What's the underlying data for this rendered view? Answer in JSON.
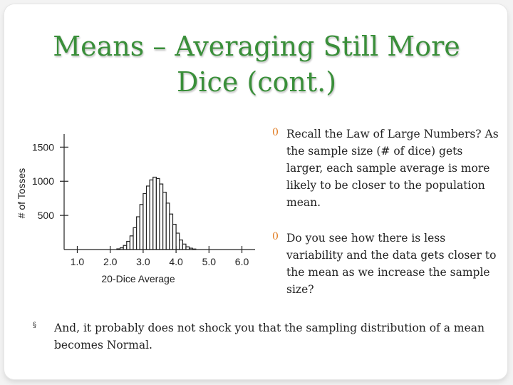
{
  "slide": {
    "title_line1": "Means – Averaging Still More",
    "title_line2": "Dice (cont.)",
    "bullet_marker": "0",
    "bullets": [
      "Recall the Law of Large Numbers? As the sample size (# of dice) gets larger, each sample average is more likely to be closer to the population mean.",
      "Do you see how there is less variability and the data gets closer to the mean as we increase the sample size?"
    ],
    "footnote_marker": "§",
    "footnote": "And, it probably does not shock you that the sampling distribution of a mean becomes Normal."
  },
  "chart_data": {
    "type": "bar",
    "title": "",
    "xlabel": "20-Dice Average",
    "ylabel": "# of Tosses",
    "x_ticks": [
      1.0,
      2.0,
      3.0,
      4.0,
      5.0,
      6.0
    ],
    "x_tick_labels": [
      "1.0",
      "2.0",
      "3.0",
      "4.0",
      "5.0",
      "6.0"
    ],
    "y_ticks": [
      500,
      1000,
      1500
    ],
    "y_tick_labels": [
      "500",
      "1000",
      "1500"
    ],
    "xlim": [
      0.6,
      6.4
    ],
    "ylim": [
      0,
      1650
    ],
    "bin_width": 0.1,
    "bins": [
      {
        "x": 2.25,
        "count": 10
      },
      {
        "x": 2.35,
        "count": 25
      },
      {
        "x": 2.45,
        "count": 60
      },
      {
        "x": 2.55,
        "count": 120
      },
      {
        "x": 2.65,
        "count": 200
      },
      {
        "x": 2.75,
        "count": 320
      },
      {
        "x": 2.85,
        "count": 480
      },
      {
        "x": 2.95,
        "count": 660
      },
      {
        "x": 3.05,
        "count": 820
      },
      {
        "x": 3.15,
        "count": 930
      },
      {
        "x": 3.25,
        "count": 1020
      },
      {
        "x": 3.35,
        "count": 1060
      },
      {
        "x": 3.45,
        "count": 1040
      },
      {
        "x": 3.55,
        "count": 960
      },
      {
        "x": 3.65,
        "count": 840
      },
      {
        "x": 3.75,
        "count": 680
      },
      {
        "x": 3.85,
        "count": 520
      },
      {
        "x": 3.95,
        "count": 370
      },
      {
        "x": 4.05,
        "count": 240
      },
      {
        "x": 4.15,
        "count": 140
      },
      {
        "x": 4.25,
        "count": 80
      },
      {
        "x": 4.35,
        "count": 40
      },
      {
        "x": 4.45,
        "count": 20
      },
      {
        "x": 4.55,
        "count": 8
      }
    ],
    "colors": {
      "bar_fill": "#ffffff",
      "bar_stroke": "#222222",
      "axis": "#222222"
    }
  }
}
